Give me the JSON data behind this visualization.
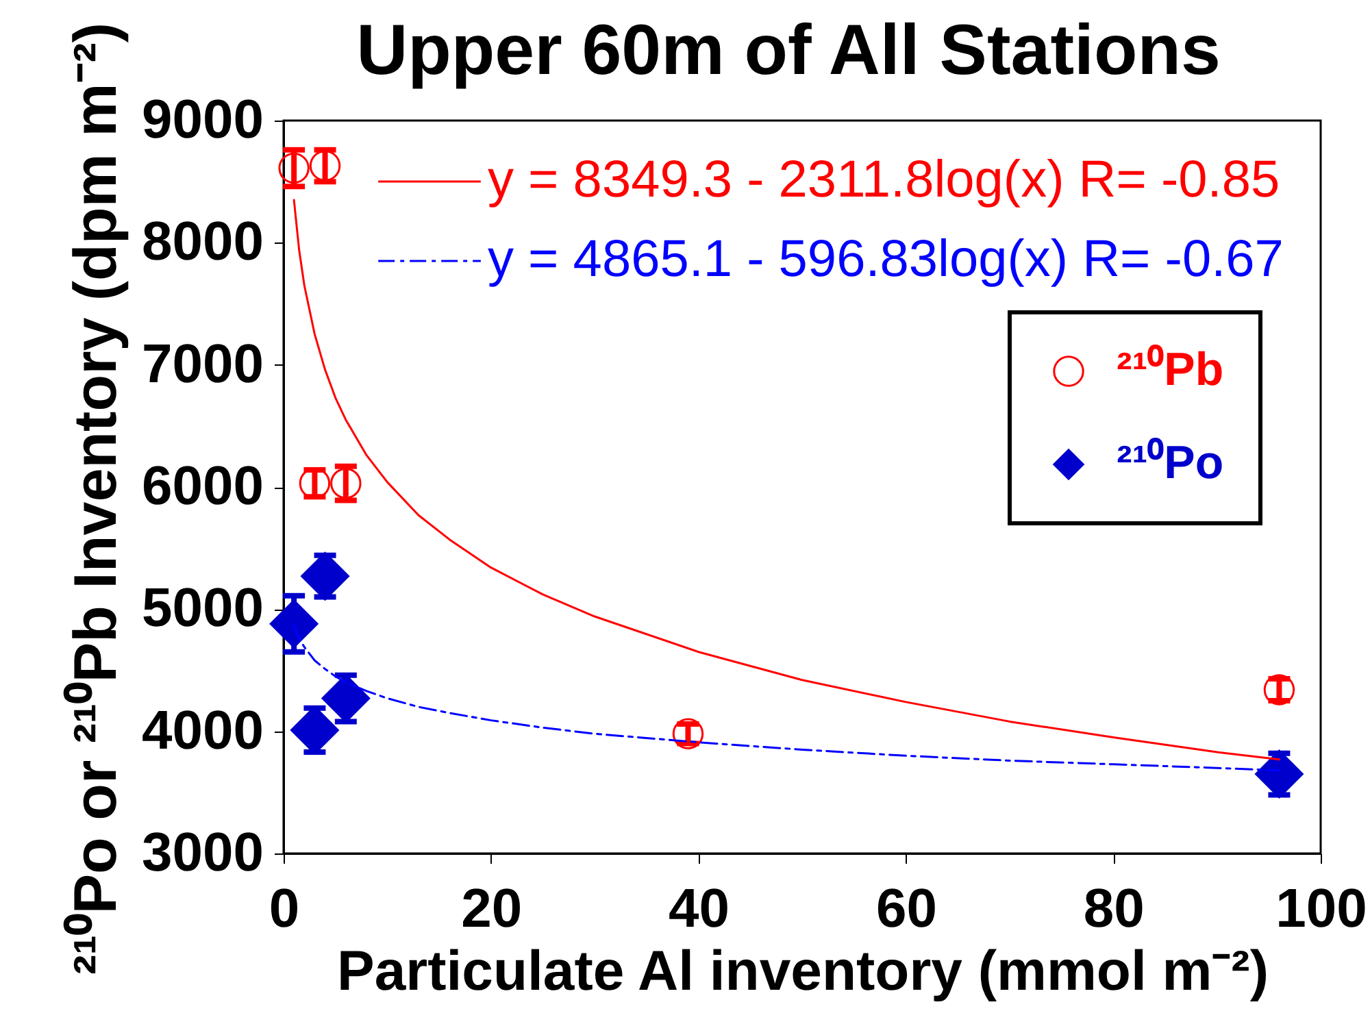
{
  "chart_data": {
    "type": "scatter",
    "title": "Upper 60m of All Stations",
    "xlabel": "Particulate Al inventory (mmol m⁻²)",
    "ylabel": "²¹⁰Po or ²¹⁰Pb Inventory (dpm m⁻²)",
    "xlim": [
      0,
      100
    ],
    "ylim": [
      3000,
      9000
    ],
    "xticks": [
      0,
      20,
      40,
      60,
      80,
      100
    ],
    "yticks": [
      3000,
      4000,
      5000,
      6000,
      7000,
      8000,
      9000
    ],
    "legend": "top right",
    "series": [
      {
        "name": "y = 8349.3 - 2311.8log(x)   R= -0.85",
        "type": "line",
        "color": "#ff0000",
        "line_style": "solid",
        "x": [
          1,
          1.5,
          2,
          3,
          4,
          5,
          6,
          8,
          10,
          13,
          16,
          20,
          25,
          30,
          40,
          50,
          60,
          70,
          80,
          90,
          96
        ],
        "values": [
          8350,
          7940,
          7650,
          7250,
          6960,
          6730,
          6550,
          6260,
          6040,
          5770,
          5570,
          5340,
          5120,
          4940,
          4650,
          4420,
          4240,
          4080,
          3950,
          3830,
          3770
        ]
      },
      {
        "name": "y = 4865.1 - 596.83log(x)   R= -0.67",
        "type": "line",
        "color": "#0000ff",
        "line_style": "dashed",
        "x": [
          1,
          1.5,
          2,
          3,
          4,
          5,
          6,
          8,
          10,
          13,
          16,
          20,
          25,
          30,
          40,
          50,
          60,
          70,
          80,
          90,
          96
        ],
        "values": [
          4870,
          4760,
          4690,
          4580,
          4510,
          4450,
          4400,
          4330,
          4270,
          4200,
          4150,
          4090,
          4030,
          3980,
          3910,
          3850,
          3800,
          3760,
          3730,
          3700,
          3680
        ]
      },
      {
        "name": "²¹⁰Pb",
        "color": "#ff0000",
        "marker": "circle",
        "x": [
          1,
          3,
          4,
          6,
          39,
          96
        ],
        "values": [
          8610,
          6030,
          8630,
          6030,
          3980,
          4340
        ],
        "errors": [
          150,
          110,
          130,
          140,
          80,
          90
        ]
      },
      {
        "name": "²¹⁰Po",
        "color": "#0000cc",
        "marker": "diamond",
        "x": [
          1,
          3,
          4,
          6,
          96
        ],
        "values": [
          4880,
          4010,
          5270,
          4270,
          3650
        ],
        "errors": [
          230,
          180,
          170,
          190,
          170
        ]
      }
    ]
  }
}
